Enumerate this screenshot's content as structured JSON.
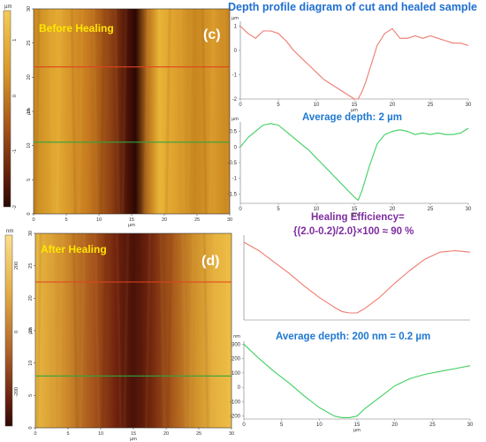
{
  "figure": {
    "title": "Depth profile diagram of cut and healed sample",
    "avg_depth_before": "Average depth: 2 µm",
    "healing_eff_line1": "Healing Efficiency=",
    "healing_eff_line2": "{(2.0-0.2)/2.0}×100 ≈ 90 %",
    "avg_depth_after": "Average depth: 200 nm = 0.2 µm"
  },
  "colors": {
    "red_profile": "#ee7b70",
    "green_profile": "#3fcf60",
    "afm_dark": "#2a0904",
    "afm_bright": "#e6ad2d",
    "label_yellow": "#ffe600",
    "title_blue": "#1f6fd0",
    "efficiency_purple": "#7e2ea0"
  },
  "chart_data": [
    {
      "id": "afm_before",
      "type": "heatmap",
      "panel_label": "(c)",
      "overlay_label": "Before Healing",
      "scale_unit": "µm",
      "scale_ticks": [
        "1",
        "0",
        "-1",
        "-2"
      ],
      "scale_range": [
        -2,
        1.5
      ],
      "xlabel": "µm",
      "ylabel": "µm",
      "x_ticks": [
        "0",
        "5",
        "10",
        "15",
        "20",
        "25",
        "30"
      ],
      "y_ticks": [
        "0",
        "5",
        "10",
        "15",
        "20",
        "25",
        "30"
      ],
      "xlim": [
        0,
        30
      ],
      "ylim": [
        0,
        30
      ],
      "scan_lines_y": [
        21.5,
        10.5
      ]
    },
    {
      "id": "profile_before_red",
      "type": "line",
      "xlabel": "µm",
      "ylabel": "µm",
      "xlim": [
        0,
        30
      ],
      "ylim": [
        -2,
        1.2
      ],
      "x_ticks": [
        "0",
        "5",
        "10",
        "15",
        "20",
        "25",
        "30"
      ],
      "y_ticks": [
        "1",
        "0",
        "-1",
        "-2"
      ],
      "x": [
        0,
        1,
        2,
        3,
        4,
        5,
        6,
        7,
        8,
        9,
        10,
        11,
        12,
        13,
        14,
        15,
        15.5,
        16,
        16.5,
        17,
        17.5,
        18,
        19,
        20,
        21,
        22,
        23,
        24,
        25,
        26,
        27,
        28,
        29,
        30
      ],
      "y": [
        1.0,
        0.7,
        0.5,
        0.8,
        0.8,
        0.7,
        0.4,
        0.0,
        -0.3,
        -0.6,
        -0.9,
        -1.2,
        -1.4,
        -1.6,
        -1.8,
        -2.0,
        -2.0,
        -1.7,
        -1.3,
        -0.8,
        -0.3,
        0.2,
        0.7,
        0.9,
        0.5,
        0.5,
        0.6,
        0.5,
        0.6,
        0.5,
        0.4,
        0.3,
        0.3,
        0.2
      ]
    },
    {
      "id": "profile_before_green",
      "type": "line",
      "xlabel": "µm",
      "ylabel": "µm",
      "xlim": [
        0,
        30
      ],
      "ylim": [
        -1.8,
        0.8
      ],
      "x_ticks": [
        "0",
        "5",
        "10",
        "15",
        "20",
        "25",
        "30"
      ],
      "y_ticks": [
        "0.5",
        "0",
        "-0.5",
        "-1",
        "-1.5"
      ],
      "x": [
        0,
        1,
        2,
        3,
        4,
        5,
        6,
        7,
        8,
        9,
        10,
        11,
        12,
        13,
        14,
        15,
        15.5,
        16,
        17,
        18,
        19,
        20,
        21,
        22,
        23,
        24,
        25,
        26,
        27,
        28,
        29,
        30
      ],
      "y": [
        0.0,
        0.3,
        0.5,
        0.7,
        0.75,
        0.7,
        0.5,
        0.3,
        0.1,
        -0.1,
        -0.35,
        -0.6,
        -0.85,
        -1.1,
        -1.35,
        -1.6,
        -1.7,
        -1.4,
        -0.6,
        0.1,
        0.4,
        0.5,
        0.55,
        0.5,
        0.4,
        0.45,
        0.4,
        0.45,
        0.4,
        0.4,
        0.45,
        0.6
      ]
    },
    {
      "id": "afm_after",
      "type": "heatmap",
      "panel_label": "(d)",
      "overlay_label": "After Healing",
      "scale_unit": "nm",
      "scale_ticks": [
        "200",
        "0",
        "-200"
      ],
      "scale_range": [
        -300,
        300
      ],
      "xlabel": "µm",
      "ylabel": "µm",
      "x_ticks": [
        "0",
        "5",
        "10",
        "15",
        "20",
        "25",
        "30"
      ],
      "y_ticks": [
        "0",
        "5",
        "10",
        "15",
        "20",
        "25",
        "30"
      ],
      "xlim": [
        0,
        30
      ],
      "ylim": [
        0,
        30
      ],
      "scan_lines_y": [
        22.5,
        8
      ]
    },
    {
      "id": "profile_after_red",
      "type": "line",
      "xlim": [
        0,
        30
      ],
      "ylim": [
        -300,
        300
      ],
      "x_ticks": [],
      "y_ticks": [],
      "x": [
        0,
        2,
        4,
        6,
        8,
        10,
        12,
        13,
        14,
        15,
        16,
        18,
        20,
        22,
        24,
        26,
        28,
        30
      ],
      "y": [
        250,
        190,
        110,
        30,
        -60,
        -140,
        -210,
        -240,
        -250,
        -250,
        -220,
        -140,
        -40,
        50,
        130,
        180,
        190,
        180
      ]
    },
    {
      "id": "profile_after_green",
      "type": "line",
      "xlabel": "µm",
      "ylabel": "nm",
      "xlim": [
        0,
        30
      ],
      "ylim": [
        -220,
        320
      ],
      "x_ticks": [
        "0",
        "5",
        "10",
        "15",
        "20",
        "25",
        "30"
      ],
      "y_ticks": [
        "300",
        "200",
        "100",
        "0",
        "-100",
        "-200"
      ],
      "x": [
        0,
        2,
        4,
        6,
        8,
        10,
        12,
        13,
        14,
        15,
        16,
        18,
        20,
        22,
        24,
        26,
        28,
        30
      ],
      "y": [
        300,
        200,
        110,
        30,
        -60,
        -140,
        -200,
        -210,
        -210,
        -200,
        -150,
        -70,
        10,
        60,
        90,
        110,
        130,
        150
      ]
    }
  ]
}
